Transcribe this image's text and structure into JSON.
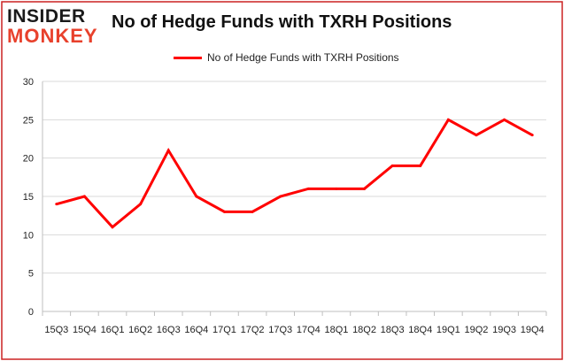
{
  "logo": {
    "line1": "INSIDER",
    "line2": "MONKEY"
  },
  "title": "No of Hedge Funds with TXRH Positions",
  "colors": {
    "series": "#ff0000",
    "grid": "#d9d9d9",
    "border": "#cc2222"
  },
  "chart_data": {
    "type": "line",
    "title": "No of Hedge Funds with TXRH Positions",
    "xlabel": "",
    "ylabel": "",
    "ylim": [
      0,
      30
    ],
    "yticks": [
      0,
      5,
      10,
      15,
      20,
      25,
      30
    ],
    "grid": true,
    "legend": "top-center",
    "categories": [
      "15Q3",
      "15Q4",
      "16Q1",
      "16Q2",
      "16Q3",
      "16Q4",
      "17Q1",
      "17Q2",
      "17Q3",
      "17Q4",
      "18Q1",
      "18Q2",
      "18Q3",
      "18Q4",
      "19Q1",
      "19Q2",
      "19Q3",
      "19Q4"
    ],
    "series": [
      {
        "name": "No of Hedge Funds with TXRH Positions",
        "values": [
          14,
          15,
          11,
          14,
          21,
          15,
          13,
          13,
          15,
          16,
          16,
          16,
          19,
          19,
          25,
          23,
          25,
          23
        ]
      }
    ]
  }
}
